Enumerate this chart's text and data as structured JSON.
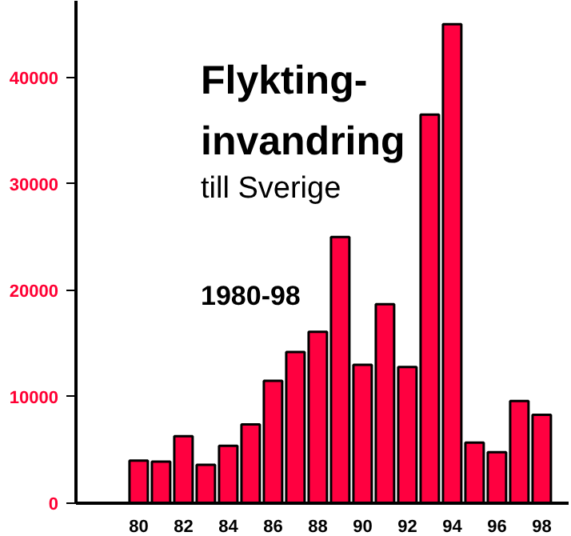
{
  "chart_data": {
    "type": "bar",
    "title": "Flykting-\ninvandring",
    "subtitle": "till Sverige",
    "annotations": [
      "1980-98"
    ],
    "x": [
      80,
      81,
      82,
      83,
      84,
      85,
      86,
      87,
      88,
      89,
      90,
      91,
      92,
      93,
      94,
      95,
      96,
      97,
      98
    ],
    "values": [
      4000,
      3900,
      6300,
      3600,
      5400,
      7400,
      11500,
      14200,
      16100,
      25000,
      13000,
      18700,
      12800,
      36500,
      45000,
      5700,
      4800,
      9600,
      8300
    ],
    "color": "#ff0040",
    "xlim": [
      77.2,
      99.2
    ],
    "xticks": [
      80,
      82,
      84,
      86,
      88,
      90,
      92,
      94,
      96,
      98
    ],
    "ylim": [
      0,
      47200
    ],
    "yticks": [
      0,
      10000,
      20000,
      30000,
      40000
    ],
    "grid": false
  }
}
